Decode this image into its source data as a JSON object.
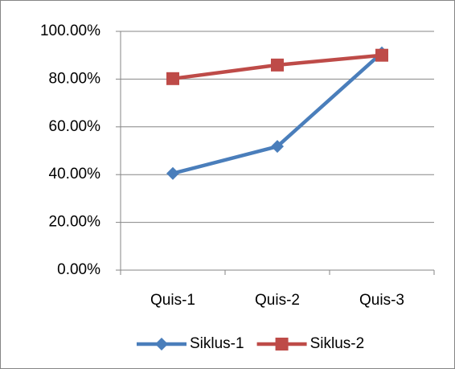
{
  "chart_data": {
    "type": "line",
    "categories": [
      "Quis-1",
      "Quis-2",
      "Quis-3"
    ],
    "series": [
      {
        "name": "Siklus-1",
        "color": "#4a7ebb",
        "marker": "diamond",
        "values": [
          40.5,
          51.8,
          91
        ]
      },
      {
        "name": "Siklus-2",
        "color": "#be4b48",
        "marker": "square",
        "values": [
          80.2,
          85.9,
          90
        ]
      }
    ],
    "ylim": [
      0,
      100
    ],
    "yticks": [
      {
        "value": 0,
        "label": "0.00%"
      },
      {
        "value": 20,
        "label": "20.00%"
      },
      {
        "value": 40,
        "label": "40.00%"
      },
      {
        "value": 60,
        "label": "60.00%"
      },
      {
        "value": 80,
        "label": "80.00%"
      },
      {
        "value": 100,
        "label": "100.00%"
      }
    ],
    "grid": true,
    "legend": "bottom"
  }
}
